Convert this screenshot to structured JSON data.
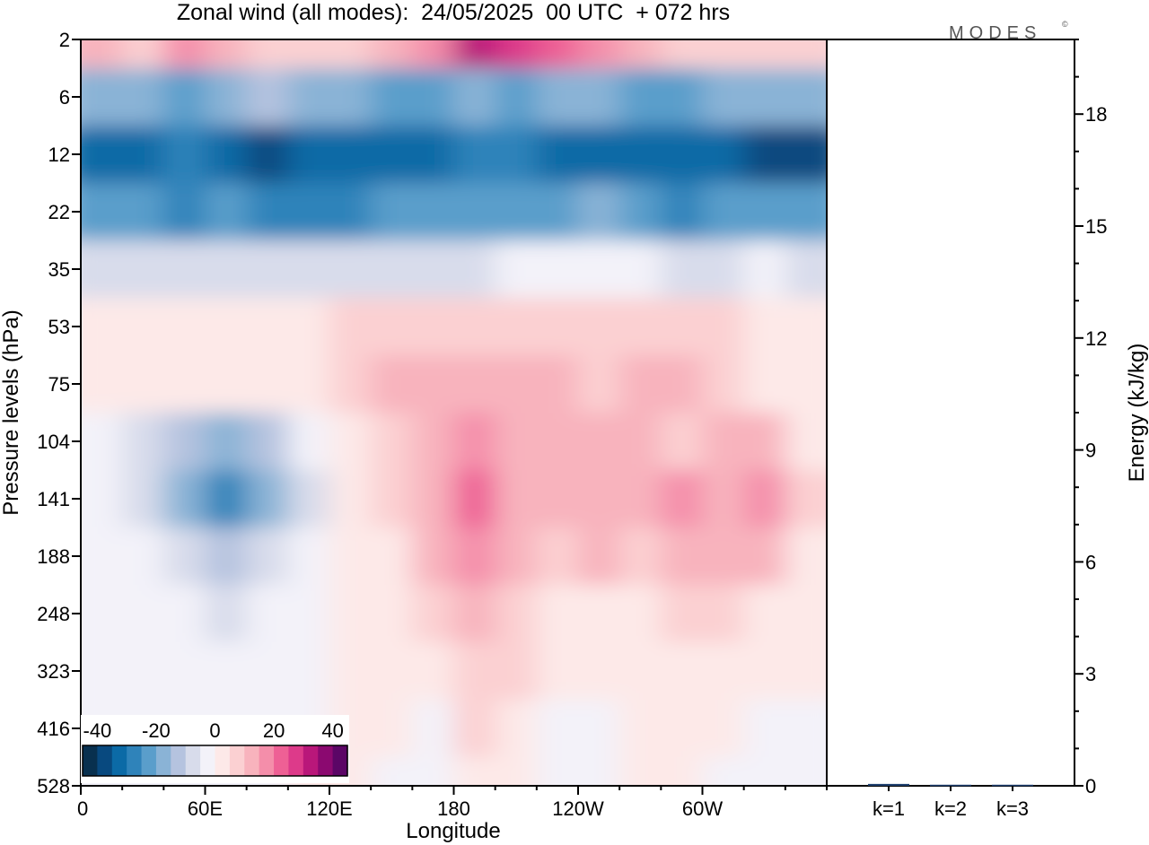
{
  "chart_data": [
    {
      "type": "heatmap",
      "title": "Zonal wind (all modes):  24/05/2025  00 UTC  + 072 hrs",
      "xlabel": "Longitude",
      "ylabel": "Pressure levels (hPa)",
      "x_ticks": [
        "0",
        "60E",
        "120E",
        "180",
        "120W",
        "60W"
      ],
      "x_tick_values": [
        0,
        60,
        120,
        180,
        240,
        300
      ],
      "xlim": [
        0,
        360
      ],
      "y_ticks": [
        "2",
        "6",
        "12",
        "22",
        "35",
        "53",
        "75",
        "104",
        "141",
        "188",
        "248",
        "323",
        "416",
        "528"
      ],
      "colorbar": {
        "ticks": [
          "-40",
          "-20",
          "0",
          "20",
          "40"
        ],
        "tick_values": [
          -40,
          -20,
          0,
          20,
          40
        ],
        "range": [
          -45,
          45
        ],
        "colors": [
          "#08304f",
          "#08497f",
          "#0b6aa6",
          "#2f83ba",
          "#5a9ecb",
          "#8ab3d6",
          "#b5c3df",
          "#d8dceb",
          "#f3f2f9",
          "#fde9e8",
          "#fbd0d2",
          "#f8b3bd",
          "#f48eaa",
          "#ee6095",
          "#dd3a8a",
          "#b9177a",
          "#8b0970",
          "#5b0666"
        ]
      },
      "pressure_rows": [
        {
          "level": "2",
          "values": [
            10,
            8,
            15,
            12,
            6,
            5,
            8,
            14,
            18,
            30,
            28,
            22,
            18,
            12,
            8,
            6,
            5,
            8
          ]
        },
        {
          "level": "6",
          "values": [
            -20,
            -18,
            -22,
            -20,
            -15,
            -16,
            -20,
            -24,
            -22,
            -20,
            -22,
            -20,
            -18,
            -22,
            -24,
            -20,
            -18,
            -20
          ]
        },
        {
          "level": "12",
          "values": [
            -35,
            -34,
            -30,
            -33,
            -36,
            -34,
            -32,
            -35,
            -33,
            -30,
            -30,
            -32,
            -34,
            -34,
            -35,
            -33,
            -36,
            -38
          ]
        },
        {
          "level": "22",
          "values": [
            -22,
            -24,
            -26,
            -25,
            -28,
            -27,
            -26,
            -24,
            -25,
            -24,
            -22,
            -21,
            -18,
            -22,
            -26,
            -24,
            -22,
            -24
          ]
        },
        {
          "level": "35",
          "values": [
            -6,
            -6,
            -8,
            -7,
            -8,
            -8,
            -7,
            -6,
            -6,
            -6,
            -5,
            -5,
            -4,
            -5,
            -6,
            -6,
            -5,
            -6
          ]
        },
        {
          "level": "53",
          "values": [
            2,
            3,
            3,
            2,
            3,
            4,
            6,
            8,
            8,
            8,
            7,
            6,
            5,
            7,
            8,
            6,
            4,
            2
          ]
        },
        {
          "level": "75",
          "values": [
            2,
            1,
            0,
            0,
            2,
            4,
            6,
            10,
            12,
            14,
            12,
            10,
            8,
            10,
            12,
            8,
            4,
            2
          ]
        },
        {
          "level": "104",
          "values": [
            -4,
            -10,
            -14,
            -16,
            -12,
            -4,
            4,
            8,
            14,
            18,
            14,
            12,
            10,
            10,
            6,
            12,
            10,
            4
          ]
        },
        {
          "level": "141",
          "values": [
            -2,
            -8,
            -16,
            -28,
            -20,
            -6,
            2,
            6,
            12,
            22,
            14,
            10,
            12,
            10,
            16,
            14,
            18,
            8
          ]
        },
        {
          "level": "188",
          "values": [
            -2,
            -4,
            -10,
            -14,
            -10,
            -4,
            2,
            4,
            10,
            16,
            10,
            6,
            10,
            8,
            14,
            12,
            10,
            4
          ]
        },
        {
          "level": "248",
          "values": [
            -2,
            -3,
            -4,
            -6,
            -4,
            -2,
            0,
            2,
            6,
            10,
            8,
            4,
            4,
            0,
            6,
            6,
            4,
            2
          ]
        },
        {
          "level": "323",
          "values": [
            -2,
            -2,
            -3,
            -3,
            -2,
            -1,
            0,
            1,
            4,
            8,
            6,
            2,
            2,
            0,
            2,
            4,
            2,
            0
          ]
        },
        {
          "level": "416",
          "values": [
            -2,
            -2,
            -2,
            -2,
            -2,
            -1,
            0,
            0,
            -2,
            6,
            4,
            -2,
            -1,
            0,
            2,
            0,
            -2,
            -2
          ]
        },
        {
          "level": "528",
          "values": [
            -2,
            -2,
            -2,
            -2,
            -2,
            0,
            0,
            -2,
            -4,
            2,
            0,
            -2,
            -2,
            0,
            0,
            -2,
            -4,
            -2
          ]
        }
      ]
    },
    {
      "type": "bar",
      "categories": [
        "k=1",
        "k=2",
        "k=3"
      ],
      "values": [
        0.05,
        0.03,
        0.03
      ],
      "ylabel": "Energy (kJ/kg)",
      "y_ticks": [
        "0",
        "3",
        "6",
        "9",
        "12",
        "15",
        "18"
      ],
      "ylim": [
        0,
        20
      ]
    }
  ],
  "brand": "MODES",
  "brand_mark": "©"
}
